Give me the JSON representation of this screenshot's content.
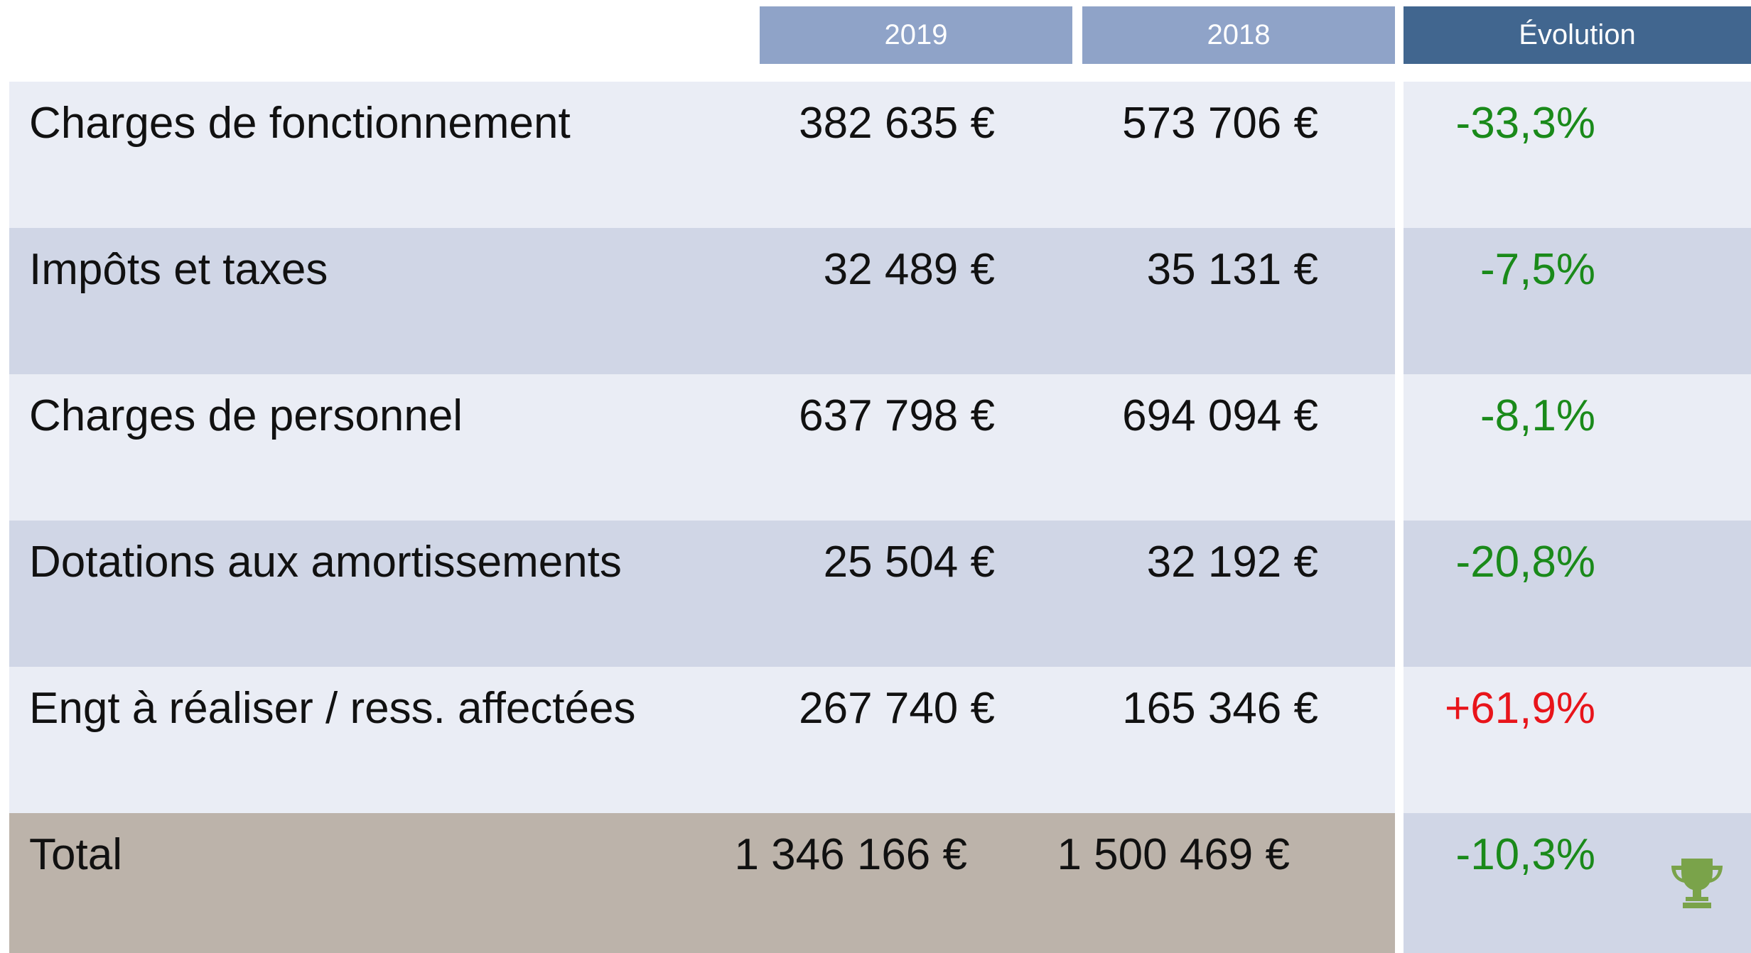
{
  "table": {
    "columns": [
      "2019",
      "2018",
      "Évolution"
    ],
    "rows": [
      {
        "label": "Charges de fonctionnement",
        "y2019": "382 635 €",
        "y2018": "573 706 €",
        "evolution": "-33,3%",
        "color": "#1a8a1a"
      },
      {
        "label": "Impôts et taxes",
        "y2019": "32 489 €",
        "y2018": "35 131 €",
        "evolution": "-7,5%",
        "color": "#1a8a1a"
      },
      {
        "label": "Charges de personnel",
        "y2019": "637 798 €",
        "y2018": "694 094 €",
        "evolution": "-8,1%",
        "color": "#1a8a1a"
      },
      {
        "label": "Dotations aux amortissements",
        "y2019": "25 504 €",
        "y2018": "32 192 €",
        "evolution": "-20,8%",
        "color": "#1a8a1a"
      },
      {
        "label": "Engt à réaliser / ress. affectées",
        "y2019": "267 740 €",
        "y2018": "165 346 €",
        "evolution": "+61,9%",
        "color": "#e8141a"
      }
    ],
    "total": {
      "label": "Total",
      "y2019": "1 346 166 €",
      "y2018": "1 500 469 €",
      "evolution": "-10,3%",
      "color": "#1a8a1a"
    }
  }
}
